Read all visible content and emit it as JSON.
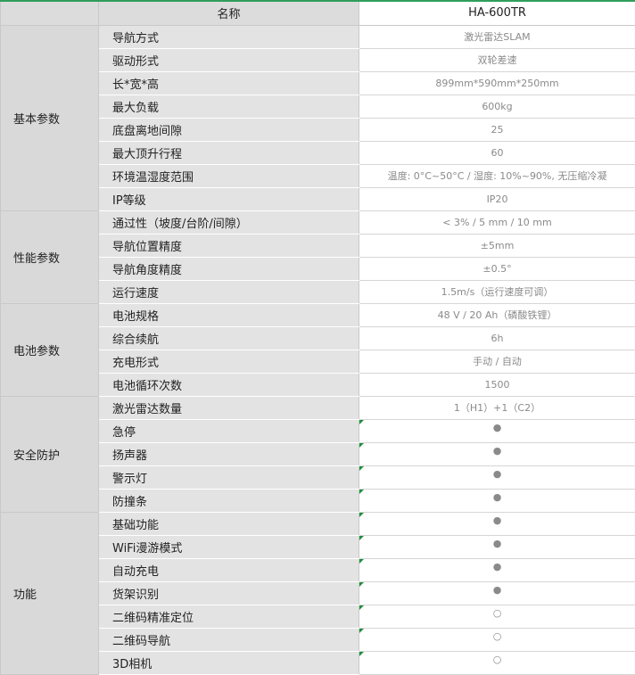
{
  "table": {
    "header": [
      "名称",
      "HA-600TR"
    ],
    "groups": [
      {
        "name": "基本参数",
        "rows": [
          [
            "导航方式",
            "激光雷达SLAM"
          ],
          [
            "驱动形式",
            "双轮差速"
          ],
          [
            "长*宽*高",
            "899mm*590mm*250mm"
          ],
          [
            "最大负载",
            "600kg"
          ],
          [
            "底盘离地间隙",
            "25"
          ],
          [
            "最大顶升行程",
            "60"
          ],
          [
            "环境温湿度范围",
            "温度: 0°C~50°C / 湿度: 10%~90%, 无压缩冷凝"
          ],
          [
            "IP等级",
            "IP20"
          ]
        ]
      },
      {
        "name": "性能参数",
        "rows": [
          [
            "通过性（坡度/台阶/间隙）",
            "< 3% / 5 mm / 10 mm"
          ],
          [
            "导航位置精度",
            "±5mm"
          ],
          [
            "导航角度精度",
            "±0.5°"
          ],
          [
            "运行速度",
            "1.5m/s（运行速度可调）"
          ]
        ]
      },
      {
        "name": "电池参数",
        "rows": [
          [
            "电池规格",
            "48 V / 20 Ah（磷酸铁锂）"
          ],
          [
            "综合续航",
            "6h"
          ],
          [
            "充电形式",
            "手动 / 自动"
          ],
          [
            "电池循环次数",
            "1500"
          ]
        ]
      },
      {
        "name": "安全防护",
        "rows": [
          [
            "激光雷达数量",
            "1（H1）+1（C2）"
          ],
          [
            "急停",
            "●"
          ],
          [
            "扬声器",
            "●"
          ],
          [
            "警示灯",
            "●"
          ],
          [
            "防撞条",
            "●"
          ]
        ]
      },
      {
        "name": "功能",
        "rows": [
          [
            "基础功能",
            "●"
          ],
          [
            "WiFi漫游模式",
            "●"
          ],
          [
            "自动充电",
            "●"
          ],
          [
            "货架识别",
            "●"
          ],
          [
            "二维码精准定位",
            "○"
          ],
          [
            "二维码导航",
            "○"
          ],
          [
            "3D相机",
            "○"
          ]
        ]
      }
    ]
  }
}
